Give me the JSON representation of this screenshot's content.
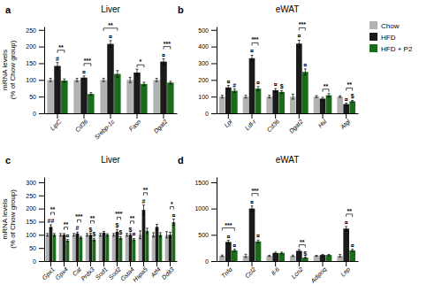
{
  "chart_data": [
    {
      "type": "bar",
      "title": "Liver",
      "panel_label": "a",
      "categories": [
        "LipC",
        "Cd36",
        "Srebp-1c",
        "Fasn",
        "Dgat2"
      ],
      "series": [
        {
          "name": "Chow",
          "color": "#b2b2b2",
          "values": [
            100,
            100,
            100,
            100,
            100
          ],
          "errors": [
            5,
            5,
            5,
            8,
            5
          ]
        },
        {
          "name": "HFD",
          "color": "#1a1a1a",
          "values": [
            142,
            107,
            208,
            122,
            155
          ],
          "errors": [
            10,
            5,
            10,
            10,
            8
          ]
        },
        {
          "name": "HFD + P2",
          "color": "#1a6b1a",
          "values": [
            98,
            58,
            118,
            88,
            92
          ],
          "errors": [
            5,
            4,
            10,
            5,
            4
          ]
        }
      ],
      "ylim": [
        0,
        260
      ],
      "yticks": [
        0,
        50,
        100,
        150,
        200,
        250
      ],
      "ylabel": "mRNA levels\n(% of Chow group)",
      "grid": false,
      "annotations": [
        {
          "text": "#",
          "category": "LipC",
          "series": "HFD"
        },
        {
          "text": "**",
          "category": "LipC",
          "from": "HFD",
          "to": "HFD + P2"
        },
        {
          "text": "¤",
          "category": "Cd36",
          "series": "HFD"
        },
        {
          "text": "***",
          "category": "Cd36",
          "from": "HFD",
          "to": "HFD + P2"
        },
        {
          "text": "¤",
          "category": "Srebp-1c",
          "series": "HFD"
        },
        {
          "text": "**",
          "category": "Srebp-1c",
          "from": "Chow",
          "to": "HFD + P2"
        },
        {
          "text": "*",
          "category": "Fasn",
          "from": "HFD",
          "to": "HFD + P2"
        },
        {
          "text": "¤",
          "category": "Dgat2",
          "series": "HFD"
        },
        {
          "text": "***",
          "category": "Dgat2",
          "from": "HFD",
          "to": "HFD + P2"
        }
      ]
    },
    {
      "type": "bar",
      "title": "eWAT",
      "panel_label": "b",
      "categories": [
        "Lpl",
        "Ldl-r",
        "Cd36",
        "Dgat2",
        "Hsl",
        "Atgl"
      ],
      "series": [
        {
          "name": "Chow",
          "color": "#b2b2b2",
          "values": [
            100,
            100,
            100,
            100,
            100,
            100
          ],
          "errors": [
            8,
            8,
            8,
            15,
            6,
            5
          ]
        },
        {
          "name": "HFD",
          "color": "#1a1a1a",
          "values": [
            155,
            330,
            138,
            418,
            88,
            55
          ],
          "errors": [
            12,
            18,
            10,
            20,
            8,
            6
          ]
        },
        {
          "name": "HFD + P2",
          "color": "#1a6b1a",
          "values": [
            135,
            148,
            128,
            248,
            108,
            72
          ],
          "errors": [
            10,
            12,
            8,
            18,
            10,
            5
          ]
        }
      ],
      "ylim": [
        0,
        520
      ],
      "yticks": [
        0,
        100,
        200,
        300,
        400,
        500
      ],
      "grid": false,
      "legend": "upper right",
      "annotations": [
        {
          "text": "¤",
          "category": "Lpl",
          "series": "HFD"
        },
        {
          "text": "#",
          "category": "Lpl",
          "series": "HFD + P2"
        },
        {
          "text": "¤",
          "category": "Ldl-r",
          "series": "HFD"
        },
        {
          "text": "¤",
          "category": "Ldl-r",
          "series": "HFD + P2"
        },
        {
          "text": "***",
          "category": "Ldl-r",
          "from": "HFD",
          "to": "HFD + P2"
        },
        {
          "text": "¤",
          "category": "Cd36",
          "series": "HFD"
        },
        {
          "text": "$",
          "category": "Cd36",
          "series": "HFD + P2"
        },
        {
          "text": "¤",
          "category": "Dgat2",
          "series": "HFD"
        },
        {
          "text": "¤",
          "category": "Dgat2",
          "series": "HFD + P2"
        },
        {
          "text": "***",
          "category": "Dgat2",
          "from": "HFD",
          "to": "HFD + P2"
        },
        {
          "text": "**",
          "category": "Hsl",
          "from": "HFD",
          "to": "HFD + P2"
        },
        {
          "text": "¤",
          "category": "Atgl",
          "series": "HFD"
        },
        {
          "text": "$",
          "category": "Atgl",
          "series": "HFD + P2"
        },
        {
          "text": "**",
          "category": "Atgl",
          "from": "HFD",
          "to": "HFD + P2"
        }
      ]
    },
    {
      "type": "bar",
      "title": "Liver",
      "panel_label": "c",
      "categories": [
        "Gpx1",
        "Gpx4",
        "Cat",
        "Prdx3",
        "Sod1",
        "Sod2",
        "Gsta4",
        "Hspa5",
        "Atf4",
        "Ddit3"
      ],
      "series": [
        {
          "name": "Chow",
          "color": "#b2b2b2",
          "values": [
            100,
            100,
            100,
            100,
            100,
            100,
            100,
            100,
            100,
            100
          ],
          "errors": [
            5,
            5,
            5,
            5,
            5,
            5,
            5,
            15,
            8,
            12
          ]
        },
        {
          "name": "HFD",
          "color": "#1a1a1a",
          "values": [
            130,
            100,
            105,
            100,
            108,
            112,
            100,
            195,
            130,
            100
          ],
          "errors": [
            8,
            5,
            5,
            6,
            5,
            8,
            5,
            18,
            10,
            10
          ]
        },
        {
          "name": "HFD + P2",
          "color": "#1a6b1a",
          "values": [
            100,
            78,
            90,
            82,
            100,
            88,
            82,
            115,
            100,
            148
          ],
          "errors": [
            5,
            4,
            4,
            5,
            4,
            5,
            4,
            10,
            8,
            12
          ]
        }
      ],
      "ylim": [
        0,
        320
      ],
      "yticks": [
        0,
        50,
        100,
        150,
        200,
        250,
        300
      ],
      "ylabel": "mRNA levels\n(% of Chow group)",
      "grid": false,
      "annotations": [
        {
          "text": "##",
          "category": "Gpx1",
          "series": "HFD"
        },
        {
          "text": "**",
          "category": "Gpx1",
          "from": "HFD",
          "to": "HFD + P2"
        },
        {
          "text": "¤",
          "category": "Gpx4",
          "series": "HFD + P2"
        },
        {
          "text": "**",
          "category": "Gpx4",
          "from": "HFD",
          "to": "HFD + P2"
        },
        {
          "text": "#",
          "category": "Cat",
          "series": "HFD"
        },
        {
          "text": "***",
          "category": "Cat",
          "from": "HFD",
          "to": "HFD + P2"
        },
        {
          "text": "$",
          "category": "Prdx3",
          "series": "HFD"
        },
        {
          "text": "$",
          "category": "Prdx3",
          "series": "HFD + P2"
        },
        {
          "text": "**",
          "category": "Prdx3",
          "from": "HFD",
          "to": "HFD + P2"
        },
        {
          "text": "$",
          "category": "Sod2",
          "series": "HFD"
        },
        {
          "text": "$",
          "category": "Sod2",
          "series": "HFD + P2"
        },
        {
          "text": "***",
          "category": "Sod2",
          "from": "HFD",
          "to": "HFD + P2"
        },
        {
          "text": "$",
          "category": "Gsta4",
          "series": "HFD"
        },
        {
          "text": "¤",
          "category": "Gsta4",
          "series": "HFD + P2"
        },
        {
          "text": "**",
          "category": "Gsta4",
          "from": "HFD",
          "to": "HFD + P2"
        },
        {
          "text": "#",
          "category": "Hspa5",
          "series": "HFD"
        },
        {
          "text": "**",
          "category": "Hspa5",
          "from": "HFD",
          "to": "HFD + P2"
        },
        {
          "text": "¤",
          "category": "Ddit3",
          "series": "HFD + P2"
        },
        {
          "text": "*",
          "category": "Ddit3",
          "from": "HFD",
          "to": "HFD + P2"
        }
      ]
    },
    {
      "type": "bar",
      "title": "eWAT",
      "panel_label": "d",
      "categories": [
        "Tnfα",
        "Ccl2",
        "Il-6",
        "Lcn2",
        "Adipoq",
        "Lep"
      ],
      "series": [
        {
          "name": "Chow",
          "color": "#b2b2b2",
          "values": [
            100,
            100,
            100,
            100,
            100,
            100
          ],
          "errors": [
            15,
            30,
            12,
            15,
            10,
            25
          ]
        },
        {
          "name": "HFD",
          "color": "#1a1a1a",
          "values": [
            365,
            1000,
            155,
            195,
            115,
            618
          ],
          "errors": [
            30,
            50,
            15,
            25,
            12,
            40
          ]
        },
        {
          "name": "HFD + P2",
          "color": "#1a6b1a",
          "values": [
            205,
            375,
            155,
            65,
            115,
            205
          ],
          "errors": [
            20,
            25,
            15,
            10,
            12,
            20
          ]
        }
      ],
      "ylim": [
        0,
        1600
      ],
      "yticks": [
        0,
        500,
        1000,
        1500
      ],
      "grid": false,
      "annotations": [
        {
          "text": "¤",
          "category": "Tnfα",
          "series": "HFD"
        },
        {
          "text": "¤",
          "category": "Tnfα",
          "series": "HFD + P2"
        },
        {
          "text": "***",
          "category": "Tnfα",
          "from": "Chow",
          "to": "HFD + P2"
        },
        {
          "text": "¤",
          "category": "Ccl2",
          "series": "HFD"
        },
        {
          "text": "¤",
          "category": "Ccl2",
          "series": "HFD + P2"
        },
        {
          "text": "***",
          "category": "Ccl2",
          "from": "HFD",
          "to": "HFD + P2"
        },
        {
          "text": "$",
          "category": "Lcn2",
          "series": "HFD + P2"
        },
        {
          "text": "**",
          "category": "Lcn2",
          "from": "HFD",
          "to": "HFD + P2"
        },
        {
          "text": "¤",
          "category": "Lep",
          "series": "HFD"
        },
        {
          "text": "¤",
          "category": "Lep",
          "series": "HFD + P2"
        },
        {
          "text": "**",
          "category": "Lep",
          "from": "HFD",
          "to": "HFD + P2"
        }
      ]
    }
  ]
}
